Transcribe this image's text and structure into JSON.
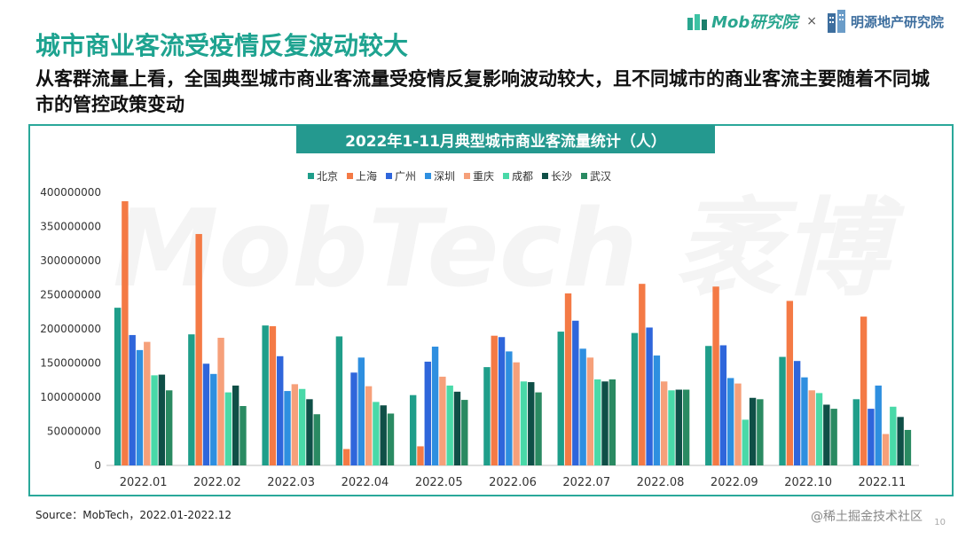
{
  "header": {
    "mob_logo_text": "Mob研究院",
    "times_sign": "×",
    "partner_logo_text": "明源地产研究院"
  },
  "page": {
    "title": "城市商业客流受疫情反复波动较大",
    "subtitle": "从客群流量上看，全国典型城市商业客流量受疫情反复影响波动较大，且不同城市的商业客流主要随着不同城市的管控政策变动",
    "source": "Source：MobTech，2022.01-2022.12",
    "page_number": "10",
    "credit": "@稀土掘金技术社区"
  },
  "chart_data": {
    "type": "bar",
    "title": "2022年1-11月典型城市商业客流量统计（人）",
    "categories": [
      "2022.01",
      "2022.02",
      "2022.03",
      "2022.04",
      "2022.05",
      "2022.06",
      "2022.07",
      "2022.08",
      "2022.09",
      "2022.10",
      "2022.11"
    ],
    "ylim": [
      0,
      400000000
    ],
    "yticks": [
      "0",
      "50000000",
      "100000000",
      "150000000",
      "200000000",
      "250000000",
      "300000000",
      "350000000",
      "400000000"
    ],
    "legend_position": "top",
    "watermark": "MobTech 袤博",
    "series": [
      {
        "name": "北京",
        "color": "#1f9e8a",
        "values": [
          231000000,
          192000000,
          205000000,
          189000000,
          103000000,
          144000000,
          196000000,
          194000000,
          175000000,
          159000000,
          97000000
        ]
      },
      {
        "name": "上海",
        "color": "#f47a45",
        "values": [
          387000000,
          339000000,
          204000000,
          24000000,
          28000000,
          190000000,
          252000000,
          266000000,
          262000000,
          241000000,
          218000000
        ]
      },
      {
        "name": "广州",
        "color": "#2f66db",
        "values": [
          191000000,
          149000000,
          160000000,
          136000000,
          152000000,
          188000000,
          212000000,
          202000000,
          176000000,
          153000000,
          83000000
        ]
      },
      {
        "name": "深圳",
        "color": "#2e8fe0",
        "values": [
          169000000,
          134000000,
          109000000,
          158000000,
          174000000,
          167000000,
          171000000,
          161000000,
          128000000,
          129000000,
          117000000
        ]
      },
      {
        "name": "重庆",
        "color": "#f6a07a",
        "values": [
          181000000,
          187000000,
          119000000,
          116000000,
          130000000,
          151000000,
          158000000,
          123000000,
          120000000,
          110000000,
          46000000
        ]
      },
      {
        "name": "成都",
        "color": "#49d9a8",
        "values": [
          132000000,
          107000000,
          112000000,
          93000000,
          117000000,
          123000000,
          126000000,
          110000000,
          67000000,
          106000000,
          86000000
        ]
      },
      {
        "name": "长沙",
        "color": "#0f4f47",
        "values": [
          133000000,
          117000000,
          97000000,
          88000000,
          108000000,
          122000000,
          123000000,
          111000000,
          99000000,
          89000000,
          71000000
        ]
      },
      {
        "name": "武汉",
        "color": "#2a8a62",
        "values": [
          110000000,
          87000000,
          75000000,
          76000000,
          96000000,
          107000000,
          126000000,
          111000000,
          97000000,
          83000000,
          52000000
        ]
      }
    ]
  }
}
